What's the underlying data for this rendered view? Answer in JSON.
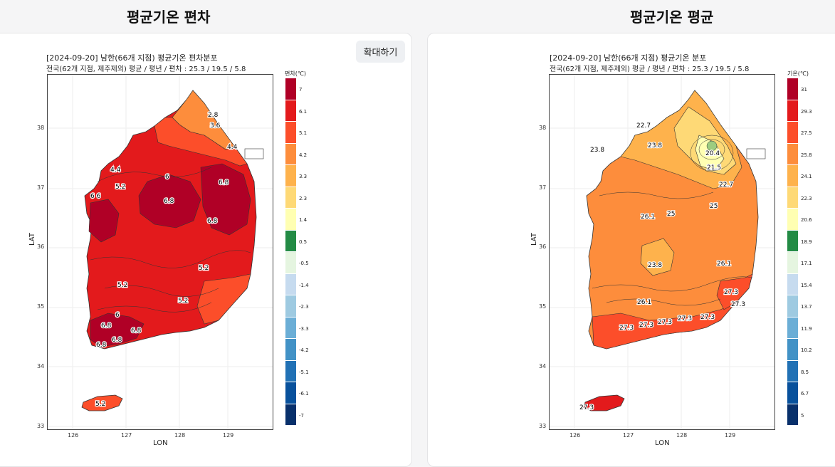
{
  "titles": {
    "left": "평균기온 편차",
    "right": "평균기온 평균"
  },
  "zoom_button": "확대하기",
  "left_map": {
    "head1": "[2024-09-20] 남한(66개 지점) 평균기온 편차분포",
    "head2": "전국(62개 지점, 제주제외) 평균 / 평년 / 편차 : 25.3 / 19.5 / 5.8",
    "legend_title": "편차(℃)",
    "legend": [
      {
        "label": "7",
        "color": "#b00026"
      },
      {
        "label": "6.1",
        "color": "#e31a1c"
      },
      {
        "label": "5.1",
        "color": "#fc4e2a"
      },
      {
        "label": "4.2",
        "color": "#fd8d3c"
      },
      {
        "label": "3.3",
        "color": "#feb24c"
      },
      {
        "label": "2.3",
        "color": "#fed976"
      },
      {
        "label": "1.4",
        "color": "#ffffb2"
      },
      {
        "label": "0.5",
        "color": "#238b45"
      },
      {
        "label": "-0.5",
        "color": "#e5f5e0"
      },
      {
        "label": "-1.4",
        "color": "#c6dbef"
      },
      {
        "label": "-2.3",
        "color": "#9ecae1"
      },
      {
        "label": "-3.3",
        "color": "#6baed6"
      },
      {
        "label": "-4.2",
        "color": "#4292c6"
      },
      {
        "label": "-5.1",
        "color": "#2171b5"
      },
      {
        "label": "-6.1",
        "color": "#08519c"
      },
      {
        "label": "-7",
        "color": "#08306b"
      }
    ],
    "contour_labels": [
      "2.8",
      "3.6",
      "4.4",
      "4.4",
      "5.2",
      "6",
      "6",
      "6",
      "6.8",
      "6.8",
      "6.8",
      "6",
      "5.2",
      "5.2",
      "5.2",
      "5.2",
      "6",
      "6.8",
      "6.8",
      "6.8",
      "6.8",
      "6.8",
      "5.2"
    ]
  },
  "right_map": {
    "head1": "[2024-09-20] 남한(66개 지점) 평균기온 분포",
    "head2": "전국(62개 지점, 제주제외) 평균 / 평년 / 편차 : 25.3 / 19.5 / 5.8",
    "legend_title": "기온(℃)",
    "legend": [
      {
        "label": "31",
        "color": "#b00026"
      },
      {
        "label": "29.3",
        "color": "#e31a1c"
      },
      {
        "label": "27.5",
        "color": "#fc4e2a"
      },
      {
        "label": "25.8",
        "color": "#fd8d3c"
      },
      {
        "label": "24.1",
        "color": "#feb24c"
      },
      {
        "label": "22.3",
        "color": "#fed976"
      },
      {
        "label": "20.6",
        "color": "#ffffb2"
      },
      {
        "label": "18.9",
        "color": "#238b45"
      },
      {
        "label": "17.1",
        "color": "#e5f5e0"
      },
      {
        "label": "15.4",
        "color": "#c6dbef"
      },
      {
        "label": "13.7",
        "color": "#9ecae1"
      },
      {
        "label": "11.9",
        "color": "#6baed6"
      },
      {
        "label": "10.2",
        "color": "#4292c6"
      },
      {
        "label": "8.5",
        "color": "#2171b5"
      },
      {
        "label": "6.7",
        "color": "#08519c"
      },
      {
        "label": "5",
        "color": "#08306b"
      }
    ],
    "contour_labels": [
      "22.7",
      "23.8",
      "23.8",
      "20.4",
      "21.5",
      "22.7",
      "25",
      "25",
      "26.1",
      "23.8",
      "26.1",
      "26.1",
      "27.3",
      "27.3",
      "27.3",
      "27.3",
      "27.3",
      "27.3",
      "27.3",
      "27.3"
    ]
  },
  "axes": {
    "xlabel": "LON",
    "ylabel": "LAT",
    "xticks": [
      "126",
      "127",
      "128",
      "129"
    ],
    "yticks": [
      "38",
      "37",
      "36",
      "35",
      "34",
      "33"
    ]
  }
}
